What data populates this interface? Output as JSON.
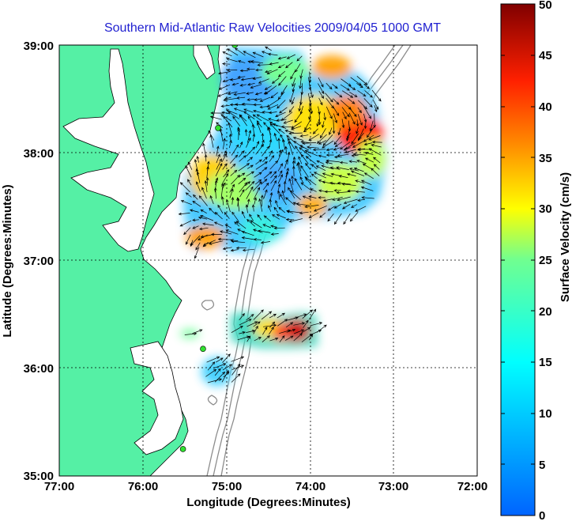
{
  "title": "Southern Mid-Atlantic Raw Velocities 2009/04/05 1000 GMT",
  "x_axis": {
    "label": "Longitude (Degrees:Minutes)",
    "ticks": [
      "77:00",
      "76:00",
      "75:00",
      "74:00",
      "73:00",
      "72:00"
    ]
  },
  "y_axis": {
    "label": "Latitude (Degrees:Minutes)",
    "ticks": [
      "39:00",
      "38:00",
      "37:00",
      "36:00",
      "35:00"
    ]
  },
  "colorbar": {
    "label": "Surface Velocity (cm/s)",
    "ticks": [
      "0",
      "5",
      "10",
      "15",
      "20",
      "25",
      "30",
      "35",
      "40",
      "45",
      "50"
    ],
    "range": [
      0,
      50
    ],
    "colormap": "jet"
  },
  "colors": {
    "land": "#55f0a5",
    "title": "#1f1fd0",
    "bathymetry": "#8c8c8c",
    "station": "#30e030"
  },
  "map_extent": {
    "lon": [
      -77,
      -72
    ],
    "lat": [
      35,
      39
    ]
  },
  "radar_stations": [
    {
      "lon": -74.9,
      "lat": 39.0
    },
    {
      "lon": -75.1,
      "lat": 38.23
    },
    {
      "lon": -75.28,
      "lat": 36.18
    },
    {
      "lon": -75.52,
      "lat": 35.25
    }
  ]
}
